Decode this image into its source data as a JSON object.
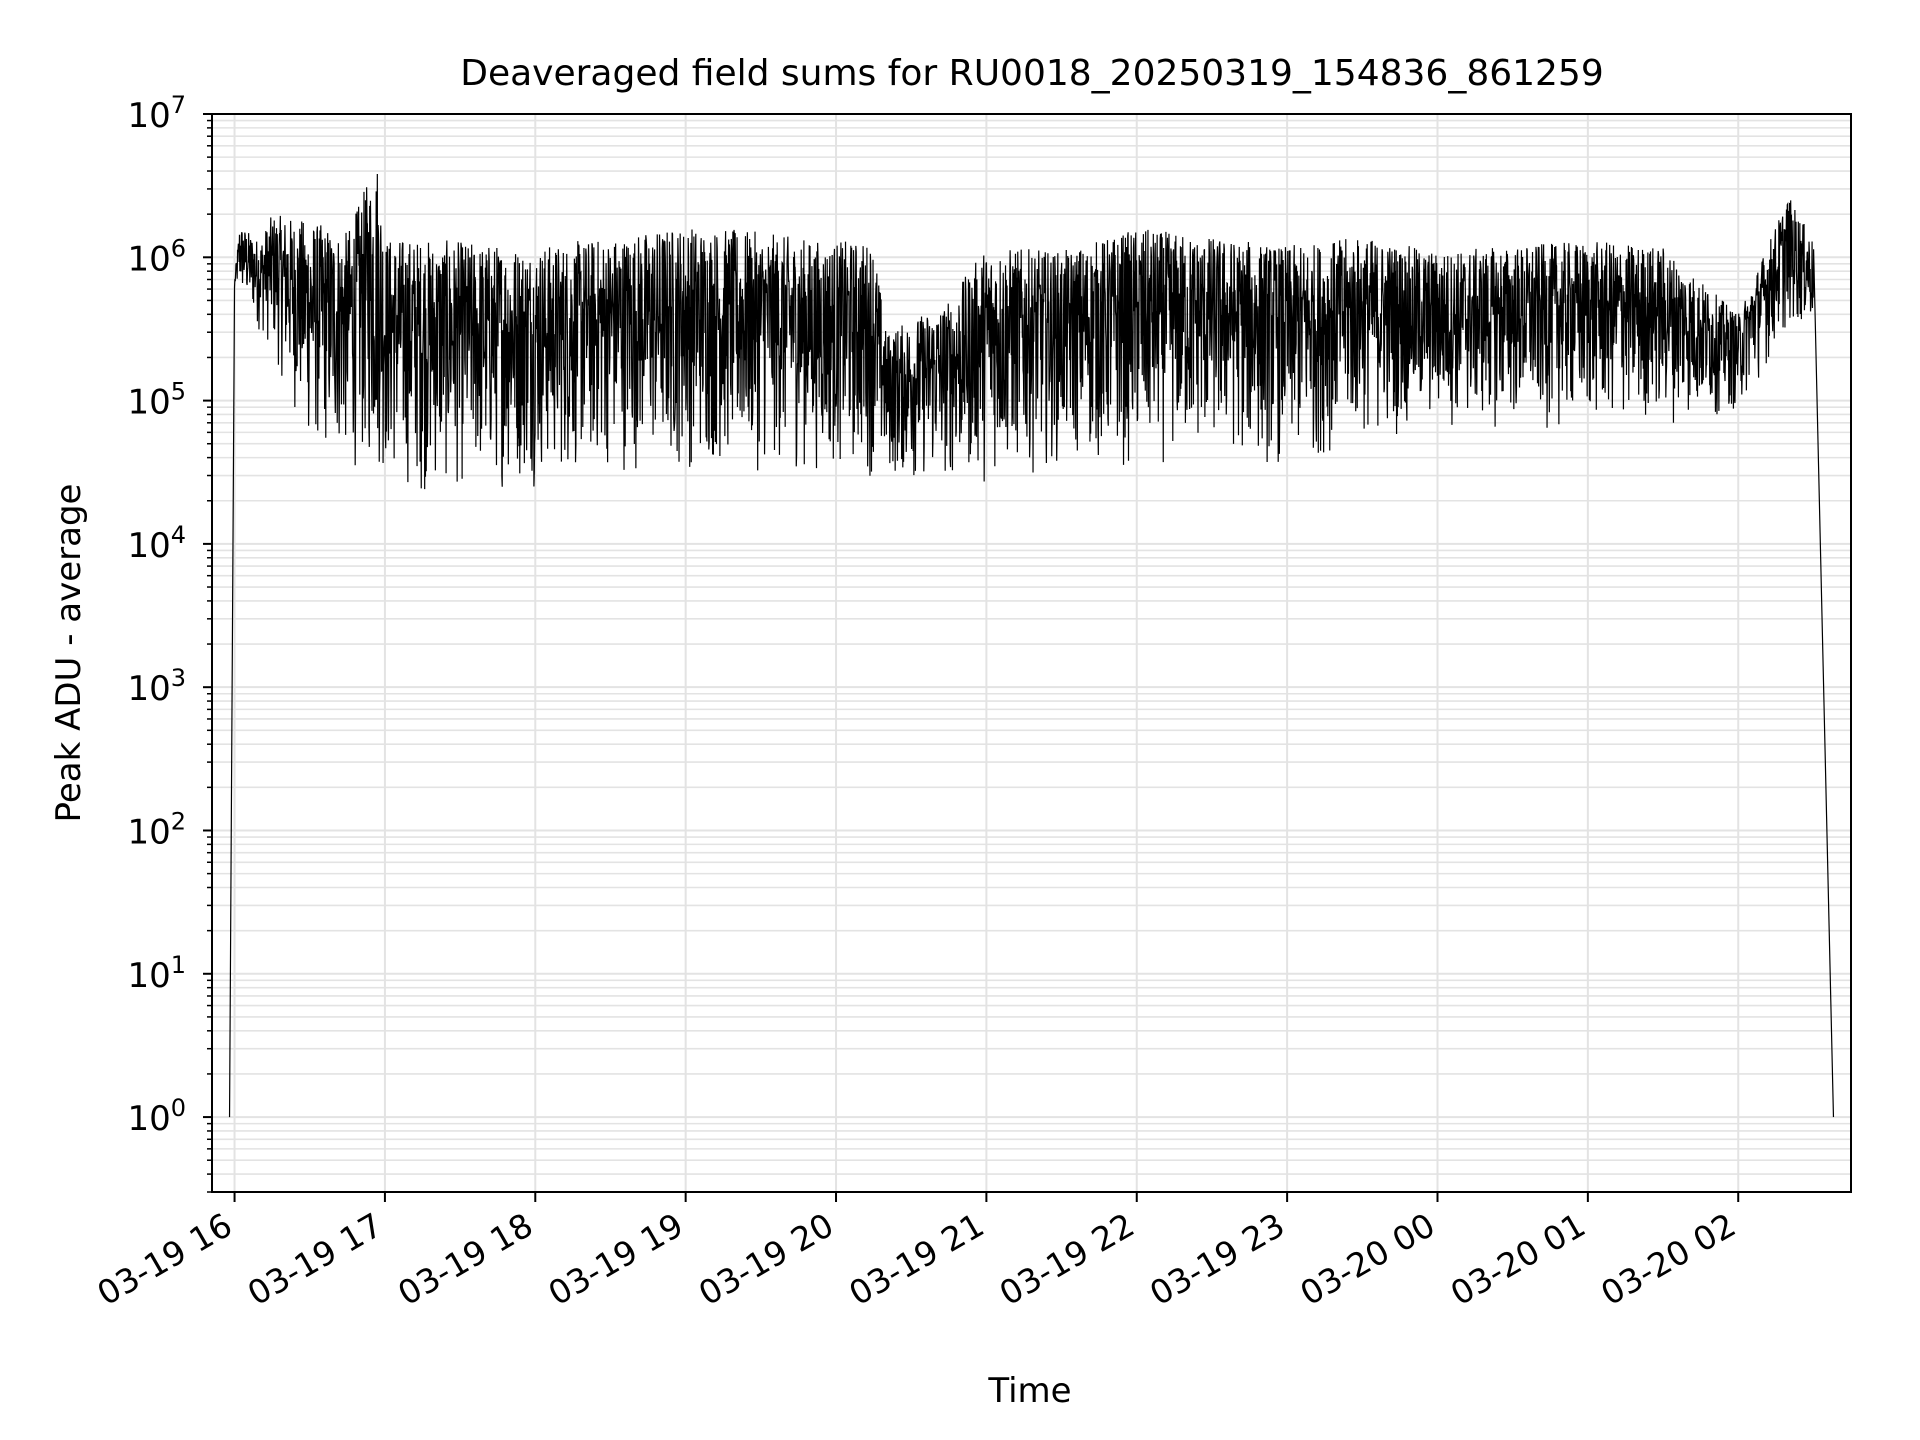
{
  "chart_data": {
    "type": "line",
    "title": "Deaveraged field sums for RU0018_20250319_154836_861259",
    "xlabel": "Time",
    "ylabel": "Peak ADU - average",
    "yscale": "log",
    "ylim": [
      0.3,
      10000000
    ],
    "xlim": [
      "2025-03-19 15:51",
      "2025-03-20 02:45"
    ],
    "grid": true,
    "line_color": "#000000",
    "grid_color": "#e3e3e3",
    "x_ticks": [
      {
        "value": "2025-03-19 16:00",
        "label": "03-19 16"
      },
      {
        "value": "2025-03-19 17:00",
        "label": "03-19 17"
      },
      {
        "value": "2025-03-19 18:00",
        "label": "03-19 18"
      },
      {
        "value": "2025-03-19 19:00",
        "label": "03-19 19"
      },
      {
        "value": "2025-03-19 20:00",
        "label": "03-19 20"
      },
      {
        "value": "2025-03-19 21:00",
        "label": "03-19 21"
      },
      {
        "value": "2025-03-19 22:00",
        "label": "03-19 22"
      },
      {
        "value": "2025-03-19 23:00",
        "label": "03-19 23"
      },
      {
        "value": "2025-03-20 00:00",
        "label": "03-20 00"
      },
      {
        "value": "2025-03-20 01:00",
        "label": "03-20 01"
      },
      {
        "value": "2025-03-20 02:00",
        "label": "03-20 02"
      }
    ],
    "y_ticks": [
      {
        "value": 1,
        "base": "10",
        "exp": "0"
      },
      {
        "value": 10,
        "base": "10",
        "exp": "1"
      },
      {
        "value": 100,
        "base": "10",
        "exp": "2"
      },
      {
        "value": 1000,
        "base": "10",
        "exp": "3"
      },
      {
        "value": 10000,
        "base": "10",
        "exp": "4"
      },
      {
        "value": 100000,
        "base": "10",
        "exp": "5"
      },
      {
        "value": 1000000,
        "base": "10",
        "exp": "6"
      },
      {
        "value": 10000000,
        "base": "10",
        "exp": "7"
      }
    ],
    "series": [
      {
        "upper_envelope": [
          [
            "2025-03-19 15:58",
            1
          ],
          [
            "2025-03-19 16:00",
            700000
          ],
          [
            "2025-03-19 16:02",
            1700000
          ],
          [
            "2025-03-19 16:10",
            1300000
          ],
          [
            "2025-03-19 16:15",
            2000000
          ],
          [
            "2025-03-19 16:30",
            1800000
          ],
          [
            "2025-03-19 16:45",
            1500000
          ],
          [
            "2025-03-19 16:57",
            5000000
          ],
          [
            "2025-03-19 17:00",
            1400000
          ],
          [
            "2025-03-19 17:30",
            1300000
          ],
          [
            "2025-03-19 18:00",
            1200000
          ],
          [
            "2025-03-19 18:30",
            1400000
          ],
          [
            "2025-03-19 19:00",
            1700000
          ],
          [
            "2025-03-19 19:30",
            1500000
          ],
          [
            "2025-03-19 19:55",
            1300000
          ],
          [
            "2025-03-19 20:15",
            1300000
          ],
          [
            "2025-03-19 20:20",
            300000
          ],
          [
            "2025-03-19 20:45",
            500000
          ],
          [
            "2025-03-19 21:00",
            1200000
          ],
          [
            "2025-03-19 21:30",
            1100000
          ],
          [
            "2025-03-19 22:00",
            1600000
          ],
          [
            "2025-03-19 22:30",
            1400000
          ],
          [
            "2025-03-19 23:00",
            1200000
          ],
          [
            "2025-03-19 23:30",
            1400000
          ],
          [
            "2025-03-20 00:00",
            1100000
          ],
          [
            "2025-03-20 00:30",
            1200000
          ],
          [
            "2025-03-20 01:00",
            1300000
          ],
          [
            "2025-03-20 01:30",
            1200000
          ],
          [
            "2025-03-20 02:00",
            400000
          ],
          [
            "2025-03-20 02:20",
            2700000
          ],
          [
            "2025-03-20 02:30",
            1300000
          ],
          [
            "2025-03-20 02:38",
            1
          ]
        ],
        "lower_envelope": [
          [
            "2025-03-19 16:00",
            600000
          ],
          [
            "2025-03-19 16:15",
            200000
          ],
          [
            "2025-03-19 16:30",
            40000
          ],
          [
            "2025-03-19 17:00",
            25000
          ],
          [
            "2025-03-19 17:15",
            20000
          ],
          [
            "2025-03-19 18:00",
            24000
          ],
          [
            "2025-03-19 18:30",
            30000
          ],
          [
            "2025-03-19 19:00",
            30000
          ],
          [
            "2025-03-19 19:30",
            30000
          ],
          [
            "2025-03-19 20:00",
            30000
          ],
          [
            "2025-03-19 20:30",
            25000
          ],
          [
            "2025-03-19 21:00",
            25000
          ],
          [
            "2025-03-19 21:30",
            35000
          ],
          [
            "2025-03-19 22:00",
            30000
          ],
          [
            "2025-03-19 22:30",
            40000
          ],
          [
            "2025-03-19 23:00",
            30000
          ],
          [
            "2025-03-19 23:30",
            50000
          ],
          [
            "2025-03-20 00:00",
            60000
          ],
          [
            "2025-03-20 00:30",
            60000
          ],
          [
            "2025-03-20 01:00",
            60000
          ],
          [
            "2025-03-20 01:30",
            65000
          ],
          [
            "2025-03-20 02:00",
            80000
          ],
          [
            "2025-03-20 02:20",
            300000
          ]
        ]
      }
    ]
  }
}
